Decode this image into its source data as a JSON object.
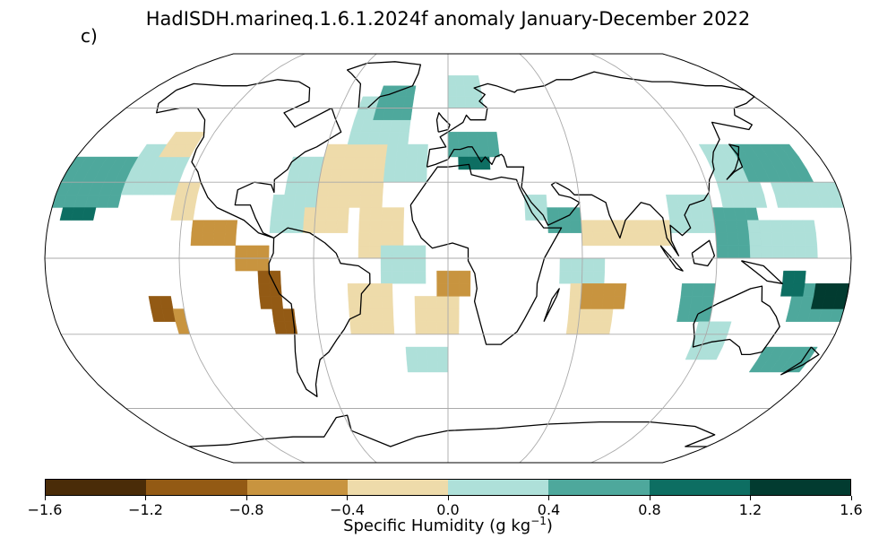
{
  "title": "HadISDH.marineq.1.6.1.2024f anomaly January-December 2022",
  "panel_label": "c)",
  "colorbar": {
    "ticks": [
      "−1.6",
      "−1.2",
      "−0.8",
      "−0.4",
      "0.0",
      "0.4",
      "0.8",
      "1.2",
      "1.6"
    ],
    "colors": [
      "#4a2c08",
      "#935a14",
      "#c8943f",
      "#eedbaa",
      "#aee0d9",
      "#4ea89c",
      "#0d6e62",
      "#023b30"
    ],
    "label_main": "Specific Humidity (g kg",
    "label_sup": "−1",
    "label_end": ")"
  },
  "map": {
    "projection": "Robinson",
    "gridlines": true,
    "cell_deg": 5,
    "land_color": "#ffffff",
    "coast_color": "#000000",
    "grid_color": "#aaaaaa",
    "anomaly_regions": [
      {
        "lon": [
          -180,
          -150
        ],
        "lat": [
          20,
          40
        ],
        "level": 5
      },
      {
        "lon": [
          -150,
          -125
        ],
        "lat": [
          25,
          45
        ],
        "level": 4
      },
      {
        "lon": [
          -175,
          -160
        ],
        "lat": [
          15,
          20
        ],
        "level": 6
      },
      {
        "lon": [
          -140,
          -125
        ],
        "lat": [
          40,
          50
        ],
        "level": 3
      },
      {
        "lon": [
          -125,
          -115
        ],
        "lat": [
          15,
          30
        ],
        "level": 3
      },
      {
        "lon": [
          -115,
          -95
        ],
        "lat": [
          5,
          15
        ],
        "level": 2
      },
      {
        "lon": [
          -95,
          -80
        ],
        "lat": [
          -5,
          5
        ],
        "level": 2
      },
      {
        "lon": [
          -85,
          -75
        ],
        "lat": [
          -20,
          -5
        ],
        "level": 1
      },
      {
        "lon": [
          -80,
          -70
        ],
        "lat": [
          -30,
          -20
        ],
        "level": 1
      },
      {
        "lon": [
          -135,
          -125
        ],
        "lat": [
          -25,
          -15
        ],
        "level": 1
      },
      {
        "lon": [
          -125,
          -120
        ],
        "lat": [
          -30,
          -20
        ],
        "level": 2
      },
      {
        "lon": [
          -80,
          -60
        ],
        "lat": [
          10,
          25
        ],
        "level": 4
      },
      {
        "lon": [
          -65,
          -45
        ],
        "lat": [
          10,
          20
        ],
        "level": 3
      },
      {
        "lon": [
          -75,
          -60
        ],
        "lat": [
          25,
          40
        ],
        "level": 4
      },
      {
        "lon": [
          -60,
          -30
        ],
        "lat": [
          20,
          45
        ],
        "level": 3
      },
      {
        "lon": [
          -50,
          -20
        ],
        "lat": [
          45,
          65
        ],
        "level": 4
      },
      {
        "lon": [
          -40,
          -20
        ],
        "lat": [
          55,
          70
        ],
        "level": 5
      },
      {
        "lon": [
          -30,
          -10
        ],
        "lat": [
          30,
          45
        ],
        "level": 4
      },
      {
        "lon": [
          -40,
          -20
        ],
        "lat": [
          0,
          20
        ],
        "level": 3
      },
      {
        "lon": [
          -30,
          -10
        ],
        "lat": [
          -10,
          5
        ],
        "level": 4
      },
      {
        "lon": [
          -45,
          -25
        ],
        "lat": [
          -30,
          -10
        ],
        "level": 3
      },
      {
        "lon": [
          -15,
          5
        ],
        "lat": [
          -30,
          -15
        ],
        "level": 3
      },
      {
        "lon": [
          -5,
          10
        ],
        "lat": [
          -15,
          -5
        ],
        "level": 2
      },
      {
        "lon": [
          -20,
          0
        ],
        "lat": [
          -45,
          -35
        ],
        "level": 4
      },
      {
        "lon": [
          0,
          25
        ],
        "lat": [
          40,
          50
        ],
        "level": 5
      },
      {
        "lon": [
          5,
          20
        ],
        "lat": [
          35,
          40
        ],
        "level": 6
      },
      {
        "lon": [
          0,
          20
        ],
        "lat": [
          60,
          72
        ],
        "level": 4
      },
      {
        "lon": [
          35,
          45
        ],
        "lat": [
          15,
          25
        ],
        "level": 4
      },
      {
        "lon": [
          45,
          60
        ],
        "lat": [
          10,
          20
        ],
        "level": 5
      },
      {
        "lon": [
          60,
          75
        ],
        "lat": [
          5,
          15
        ],
        "level": 3
      },
      {
        "lon": [
          75,
          100
        ],
        "lat": [
          5,
          15
        ],
        "level": 3
      },
      {
        "lon": [
          50,
          70
        ],
        "lat": [
          -10,
          0
        ],
        "level": 4
      },
      {
        "lon": [
          55,
          75
        ],
        "lat": [
          -30,
          -10
        ],
        "level": 3
      },
      {
        "lon": [
          60,
          80
        ],
        "lat": [
          -20,
          -10
        ],
        "level": 2
      },
      {
        "lon": [
          100,
          120
        ],
        "lat": [
          10,
          25
        ],
        "level": 4
      },
      {
        "lon": [
          120,
          140
        ],
        "lat": [
          0,
          20
        ],
        "level": 5
      },
      {
        "lon": [
          125,
          145
        ],
        "lat": [
          20,
          45
        ],
        "level": 4
      },
      {
        "lon": [
          140,
          170
        ],
        "lat": [
          30,
          45
        ],
        "level": 5
      },
      {
        "lon": [
          150,
          180
        ],
        "lat": [
          20,
          30
        ],
        "level": 4
      },
      {
        "lon": [
          135,
          165
        ],
        "lat": [
          0,
          15
        ],
        "level": 4
      },
      {
        "lon": [
          155,
          180
        ],
        "lat": [
          -25,
          -10
        ],
        "level": 5
      },
      {
        "lon": [
          165,
          180
        ],
        "lat": [
          -20,
          -10
        ],
        "level": 7
      },
      {
        "lon": [
          150,
          160
        ],
        "lat": [
          -15,
          -5
        ],
        "level": 6
      },
      {
        "lon": [
          105,
          120
        ],
        "lat": [
          -25,
          -10
        ],
        "level": 5
      },
      {
        "lon": [
          115,
          130
        ],
        "lat": [
          -40,
          -25
        ],
        "level": 4
      },
      {
        "lon": [
          150,
          175
        ],
        "lat": [
          -45,
          -35
        ],
        "level": 5
      }
    ]
  }
}
